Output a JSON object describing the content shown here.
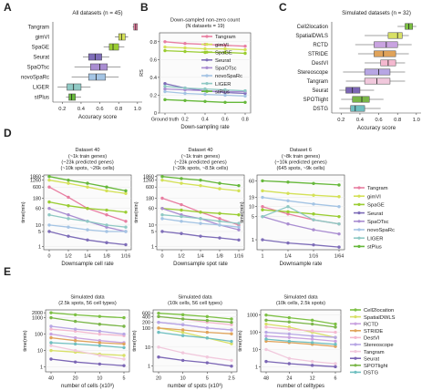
{
  "colors": {
    "Tangram": "#e87ea1",
    "gimVI": "#d4e157",
    "SpaGE": "#9acd32",
    "Seurat": "#7e6db8",
    "SpaOTsc": "#a98dd1",
    "novoSpaRc": "#a4c4e4",
    "LIGER": "#8fc9c4",
    "stPlus": "#66b83a",
    "Cell2location": "#7cc043",
    "SpatialDWLS": "#d8e066",
    "RCTD": "#c9a3e0",
    "STRIDE": "#e0a35a",
    "DestVI": "#f4b8cf",
    "Stereoscope": "#b7a6e4",
    "Tangram2": "#f1c8dc",
    "Seurat2": "#7b66b5",
    "SPOTlight": "#7ab648",
    "DSTG": "#6fbfc0"
  },
  "panel_letters": [
    "A",
    "B",
    "C",
    "D",
    "E"
  ],
  "chart_data": [
    {
      "id": "A",
      "type": "box",
      "title": "All datasets (n = 45)",
      "xlabel": "Accuracy score",
      "xlim": [
        0.1,
        1.05
      ],
      "xticks": [
        "0.2",
        "0.4",
        "0.6",
        "0.8",
        "1.0"
      ],
      "categories": [
        "Tangram",
        "gimVI",
        "SpaGE",
        "Seurat",
        "SpaOTsc",
        "novoSpaRc",
        "LIGER",
        "stPlus"
      ],
      "boxes": [
        {
          "name": "Tangram",
          "q1": 0.96,
          "median": 0.98,
          "q3": 1.0,
          "lo": 0.95,
          "hi": 1.0
        },
        {
          "name": "gimVI",
          "q1": 0.8,
          "median": 0.83,
          "q3": 0.87,
          "lo": 0.76,
          "hi": 0.9
        },
        {
          "name": "SpaGE",
          "q1": 0.7,
          "median": 0.74,
          "q3": 0.8,
          "lo": 0.64,
          "hi": 0.86
        },
        {
          "name": "Seurat",
          "q1": 0.48,
          "median": 0.55,
          "q3": 0.62,
          "lo": 0.42,
          "hi": 0.7
        },
        {
          "name": "SpaOTsc",
          "q1": 0.5,
          "median": 0.6,
          "q3": 0.68,
          "lo": 0.33,
          "hi": 0.82
        },
        {
          "name": "novoSpaRc",
          "q1": 0.48,
          "median": 0.56,
          "q3": 0.66,
          "lo": 0.3,
          "hi": 0.8
        },
        {
          "name": "LIGER",
          "q1": 0.25,
          "median": 0.32,
          "q3": 0.4,
          "lo": 0.15,
          "hi": 0.5
        },
        {
          "name": "stPlus",
          "q1": 0.27,
          "median": 0.3,
          "q3": 0.34,
          "lo": 0.24,
          "hi": 0.4
        }
      ]
    },
    {
      "id": "B",
      "type": "line",
      "title": "Down-sampled non-zero count",
      "subtitle": "(N datasets = 19)",
      "xlabel": "Down-sampling rate",
      "ylabel": "RS",
      "x": [
        "Ground truth",
        "0.2",
        "0.4",
        "0.6",
        "0.8"
      ],
      "ylim": [
        0,
        0.9
      ],
      "yticks": [
        "0",
        "0.2",
        "0.4",
        "0.6",
        "0.8"
      ],
      "series": [
        {
          "name": "Tangram",
          "values": [
            0.8,
            0.78,
            0.77,
            0.76,
            0.75
          ]
        },
        {
          "name": "gimVI",
          "values": [
            0.74,
            0.73,
            0.72,
            0.72,
            0.71
          ]
        },
        {
          "name": "SpaGE",
          "values": [
            0.7,
            0.69,
            0.68,
            0.68,
            0.67
          ]
        },
        {
          "name": "Seurat",
          "values": [
            0.33,
            0.28,
            0.25,
            0.23,
            0.22
          ]
        },
        {
          "name": "SpaOTsc",
          "values": [
            0.27,
            0.26,
            0.25,
            0.24,
            0.24
          ]
        },
        {
          "name": "novoSpaRc",
          "values": [
            0.24,
            0.22,
            0.21,
            0.2,
            0.19
          ]
        },
        {
          "name": "LIGER",
          "values": [
            0.3,
            0.28,
            0.27,
            0.26,
            0.25
          ]
        },
        {
          "name": "stPlus",
          "values": [
            0.15,
            0.14,
            0.13,
            0.12,
            0.12
          ]
        }
      ]
    },
    {
      "id": "C",
      "type": "box",
      "title": "Simulated datasets (n = 32)",
      "xlabel": "Accuracy score",
      "xlim": [
        0.1,
        1.05
      ],
      "xticks": [
        "0.2",
        "0.4",
        "0.6",
        "0.8",
        "1.0"
      ],
      "categories": [
        "Cell2location",
        "SpatialDWLS",
        "RCTD",
        "STRIDE",
        "DestVI",
        "Stereoscope",
        "Tangram",
        "Seurat",
        "SPOTlight",
        "DSTG"
      ],
      "boxes": [
        {
          "name": "Cell2location",
          "q1": 0.88,
          "median": 0.92,
          "q3": 0.96,
          "lo": 0.8,
          "hi": 1.0
        },
        {
          "name": "SpatialDWLS",
          "q1": 0.7,
          "median": 0.8,
          "q3": 0.85,
          "lo": 0.45,
          "hi": 0.92
        },
        {
          "name": "RCTD",
          "q1": 0.55,
          "median": 0.68,
          "q3": 0.8,
          "lo": 0.35,
          "hi": 0.95
        },
        {
          "name": "STRIDE",
          "q1": 0.55,
          "median": 0.65,
          "q3": 0.78,
          "lo": 0.38,
          "hi": 0.92
        },
        {
          "name": "DestVI",
          "q1": 0.62,
          "median": 0.7,
          "q3": 0.78,
          "lo": 0.45,
          "hi": 0.88
        },
        {
          "name": "Stereoscope",
          "q1": 0.45,
          "median": 0.6,
          "q3": 0.72,
          "lo": 0.22,
          "hi": 0.88
        },
        {
          "name": "Tangram",
          "q1": 0.45,
          "median": 0.58,
          "q3": 0.72,
          "lo": 0.25,
          "hi": 0.88
        },
        {
          "name": "Seurat",
          "q1": 0.25,
          "median": 0.32,
          "q3": 0.4,
          "lo": 0.18,
          "hi": 0.55
        },
        {
          "name": "SPOTlight",
          "q1": 0.32,
          "median": 0.42,
          "q3": 0.5,
          "lo": 0.2,
          "hi": 0.65
        },
        {
          "name": "DSTG",
          "q1": 0.3,
          "median": 0.35,
          "q3": 0.45,
          "lo": 0.18,
          "hi": 0.62
        }
      ]
    },
    {
      "id": "D1",
      "type": "line",
      "title": [
        "Dataset 40",
        "(~1k train genes)",
        "(~23k predicted genes)",
        "(~10k spots, ~26k cells)"
      ],
      "xlabel": "Downsample cell rate",
      "ylabel": "time(min)",
      "x": [
        "0",
        "1/2",
        "1/4",
        "1/8",
        "1/16"
      ],
      "yticks": [
        "1860",
        "1260",
        "600",
        "180",
        "60",
        "10",
        "5",
        "1"
      ],
      "ylim": [
        0.7,
        2200
      ],
      "series": [
        {
          "name": "Tangram",
          "values": [
            600,
            200,
            60,
            30,
            15
          ]
        },
        {
          "name": "gimVI",
          "values": [
            1260,
            900,
            600,
            400,
            300
          ]
        },
        {
          "name": "SpaGE",
          "values": [
            120,
            80,
            60,
            50,
            40
          ]
        },
        {
          "name": "Seurat",
          "values": [
            5,
            3,
            2,
            1.5,
            1.2
          ]
        },
        {
          "name": "SpaOTsc",
          "values": [
            60,
            30,
            15,
            8,
            5
          ]
        },
        {
          "name": "novoSpaRc",
          "values": [
            10,
            8,
            6,
            5,
            5
          ]
        },
        {
          "name": "LIGER",
          "values": [
            30,
            20,
            15,
            10,
            8
          ]
        },
        {
          "name": "stPlus",
          "values": [
            1860,
            1260,
            900,
            600,
            400
          ]
        }
      ]
    },
    {
      "id": "D2",
      "type": "line",
      "title": [
        "Dataset 40",
        "(~1k train genes)",
        "(~23k predicted genes)",
        "(~20k spots, ~8.5k cells)"
      ],
      "xlabel": "Downsample spot rate",
      "ylabel": "time(min)",
      "x": [
        "0",
        "1/2",
        "1/4",
        "1/8",
        "1/16"
      ],
      "yticks": [
        "1860",
        "1260",
        "600",
        "180",
        "60",
        "10",
        "5",
        "1"
      ],
      "ylim": [
        0.7,
        2200
      ],
      "series": [
        {
          "name": "Tangram",
          "values": [
            180,
            90,
            40,
            20,
            10
          ]
        },
        {
          "name": "gimVI",
          "values": [
            1260,
            900,
            700,
            500,
            400
          ]
        },
        {
          "name": "SpaGE",
          "values": [
            60,
            50,
            40,
            35,
            30
          ]
        },
        {
          "name": "Seurat",
          "values": [
            5,
            4,
            3,
            2.5,
            2
          ]
        },
        {
          "name": "SpaOTsc",
          "values": [
            60,
            30,
            20,
            10,
            6
          ]
        },
        {
          "name": "novoSpaRc",
          "values": [
            20,
            15,
            12,
            10,
            8
          ]
        },
        {
          "name": "LIGER",
          "values": [
            30,
            25,
            20,
            15,
            12
          ]
        },
        {
          "name": "stPlus",
          "values": [
            1860,
            1500,
            1260,
            900,
            700
          ]
        }
      ]
    },
    {
      "id": "D3",
      "type": "line",
      "title": [
        "Dataset 6",
        "(~8k train genes)",
        "(~10k predicted genes)",
        "(645 spots, ~9k cells)"
      ],
      "xlabel": "Downsample rate",
      "ylabel": "time(min)",
      "x": [
        "1",
        "1/4",
        "1/16",
        "1/64"
      ],
      "yticks": [
        "60",
        "19",
        "10",
        "5",
        "1"
      ],
      "ylim": [
        0.5,
        90
      ],
      "series": [
        {
          "name": "Tangram",
          "values": [
            10,
            6,
            4,
            3
          ]
        },
        {
          "name": "gimVI",
          "values": [
            30,
            25,
            22,
            20
          ]
        },
        {
          "name": "SpaGE",
          "values": [
            8,
            7,
            6,
            5
          ]
        },
        {
          "name": "Seurat",
          "values": [
            1,
            0.8,
            0.7,
            0.6
          ]
        },
        {
          "name": "SpaOTsc",
          "values": [
            5,
            3,
            2,
            1.5
          ]
        },
        {
          "name": "novoSpaRc",
          "values": [
            19,
            15,
            12,
            10
          ]
        },
        {
          "name": "LIGER",
          "values": [
            5,
            10,
            4,
            3
          ]
        },
        {
          "name": "stPlus",
          "values": [
            60,
            55,
            50,
            45
          ]
        }
      ]
    },
    {
      "id": "E1",
      "type": "line",
      "title": [
        "Simulated data",
        "(2.5k spots, 56 cell types)"
      ],
      "xlabel": "number of cells (x10³)",
      "ylabel": "time(min)",
      "x": [
        "40",
        "20",
        "10",
        "5"
      ],
      "yticks": [
        "2000",
        "1000",
        "100",
        "10",
        "1"
      ],
      "ylim": [
        0.5,
        3000
      ],
      "series": [
        {
          "name": "Cell2location",
          "values": [
            2000,
            1500,
            1200,
            1000
          ]
        },
        {
          "name": "SpatialDWLS",
          "values": [
            10,
            8,
            6,
            5
          ]
        },
        {
          "name": "RCTD",
          "values": [
            100,
            60,
            40,
            30
          ]
        },
        {
          "name": "STRIDE",
          "values": [
            60,
            40,
            30,
            25
          ]
        },
        {
          "name": "DestVI",
          "values": [
            200,
            150,
            100,
            80
          ]
        },
        {
          "name": "Stereoscope",
          "values": [
            300,
            200,
            150,
            100
          ]
        },
        {
          "name": "Tangram",
          "values": [
            20,
            10,
            5,
            3
          ]
        },
        {
          "name": "Seurat",
          "values": [
            3,
            2,
            1.5,
            1.2
          ]
        },
        {
          "name": "SPOTlight",
          "values": [
            1000,
            600,
            400,
            300
          ]
        },
        {
          "name": "DSTG",
          "values": [
            30,
            25,
            20,
            15
          ]
        }
      ]
    },
    {
      "id": "E2",
      "type": "line",
      "title": [
        "Simulated data",
        "(10k cells, 56 cell types)"
      ],
      "xlabel": "number of spots (x10³)",
      "ylabel": "time(min)",
      "x": [
        "20",
        "10",
        "5",
        "2.5"
      ],
      "yticks": [
        "600",
        "400",
        "200",
        "100",
        "10",
        "1"
      ],
      "ylim": [
        0.5,
        900
      ],
      "series": [
        {
          "name": "Cell2location",
          "values": [
            600,
            500,
            400,
            300
          ]
        },
        {
          "name": "SpatialDWLS",
          "values": [
            100,
            60,
            30,
            15
          ]
        },
        {
          "name": "RCTD",
          "values": [
            200,
            150,
            100,
            80
          ]
        },
        {
          "name": "STRIDE",
          "values": [
            100,
            80,
            60,
            50
          ]
        },
        {
          "name": "DestVI",
          "values": [
            400,
            300,
            200,
            150
          ]
        },
        {
          "name": "Stereoscope",
          "values": [
            200,
            150,
            100,
            80
          ]
        },
        {
          "name": "Tangram",
          "values": [
            10,
            5,
            3,
            2
          ]
        },
        {
          "name": "Seurat",
          "values": [
            3,
            2,
            1.5,
            1
          ]
        },
        {
          "name": "SPOTlight",
          "values": [
            400,
            300,
            250,
            200
          ]
        },
        {
          "name": "DSTG",
          "values": [
            60,
            40,
            30,
            20
          ]
        }
      ]
    },
    {
      "id": "E3",
      "type": "line",
      "title": [
        "Simulated data",
        "(10k cells, 2.5k spots)"
      ],
      "xlabel": "number of celltypes",
      "ylabel": "time(min)",
      "x": [
        "48",
        "24",
        "12",
        "6"
      ],
      "yticks": [
        "1000",
        "100",
        "10",
        "1"
      ],
      "ylim": [
        0.5,
        2000
      ],
      "series": [
        {
          "name": "Cell2location",
          "values": [
            1000,
            700,
            500,
            300
          ]
        },
        {
          "name": "SpatialDWLS",
          "values": [
            300,
            200,
            100,
            50
          ]
        },
        {
          "name": "RCTD",
          "values": [
            60,
            50,
            40,
            30
          ]
        },
        {
          "name": "STRIDE",
          "values": [
            30,
            25,
            20,
            15
          ]
        },
        {
          "name": "DestVI",
          "values": [
            200,
            150,
            120,
            100
          ]
        },
        {
          "name": "Stereoscope",
          "values": [
            100,
            80,
            60,
            50
          ]
        },
        {
          "name": "Tangram",
          "values": [
            10,
            3,
            2,
            1.5
          ]
        },
        {
          "name": "Seurat",
          "values": [
            2,
            1.5,
            1.2,
            1
          ]
        },
        {
          "name": "SPOTlight",
          "values": [
            500,
            400,
            300,
            200
          ]
        },
        {
          "name": "DSTG",
          "values": [
            40,
            30,
            25,
            20
          ]
        }
      ]
    }
  ],
  "legends": {
    "B": [
      "Tangram",
      "gimVI",
      "SpaGE",
      "Seurat",
      "SpaOTsc",
      "novoSpaRc",
      "LIGER",
      "stPlus"
    ],
    "D": [
      "Tangram",
      "gimVI",
      "SpaGE",
      "Seurat",
      "SpaOTsc",
      "novoSpaRc",
      "LIGER",
      "stPlus"
    ],
    "E": [
      "Cell2location",
      "SpatialDWLS",
      "RCTD",
      "STRIDE",
      "DestVI",
      "Stereoscope",
      "Tangram",
      "Seurat",
      "SPOTlight",
      "DSTG"
    ]
  }
}
